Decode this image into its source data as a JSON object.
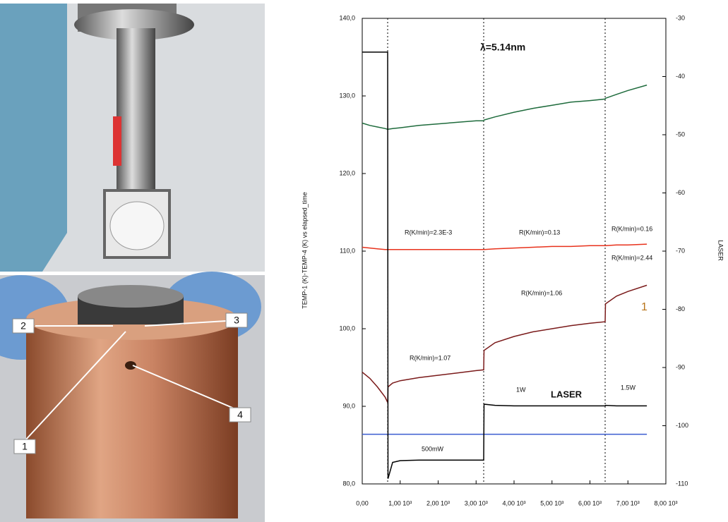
{
  "photo": {
    "labels": [
      "1",
      "2",
      "3",
      "4"
    ]
  },
  "chart_data": {
    "type": "line",
    "title": "λ=5.14nm",
    "y_label": "TEMP-1 (K)-TEMP-4 (K) vs elapsed_time",
    "y2_label": "LASER",
    "x": [
      0,
      200,
      400,
      600,
      670,
      680,
      800,
      1000,
      1500,
      2000,
      2500,
      3000,
      3200,
      3210,
      3500,
      4000,
      4500,
      5000,
      5500,
      6000,
      6400,
      6410,
      6700,
      7000,
      7500
    ],
    "series": [
      {
        "color": "#1e6b3c",
        "values": [
          126.5,
          126.2,
          126.0,
          125.8,
          125.7,
          125.7,
          125.8,
          125.9,
          126.2,
          126.4,
          126.6,
          126.8,
          126.8,
          126.9,
          127.3,
          127.9,
          128.4,
          128.8,
          129.2,
          129.4,
          129.6,
          129.7,
          130.2,
          130.7,
          131.4
        ]
      },
      {
        "color": "#e8321c",
        "values": [
          110.5,
          110.4,
          110.3,
          110.2,
          110.2,
          110.2,
          110.2,
          110.2,
          110.2,
          110.2,
          110.2,
          110.2,
          110.2,
          110.2,
          110.3,
          110.4,
          110.5,
          110.6,
          110.6,
          110.7,
          110.7,
          110.7,
          110.8,
          110.8,
          110.9
        ]
      },
      {
        "color": "#7a1a1a",
        "values": [
          94.4,
          93.6,
          92.5,
          91.2,
          90.5,
          92.5,
          93.0,
          93.3,
          93.7,
          94.0,
          94.3,
          94.6,
          94.7,
          97.2,
          98.2,
          99.0,
          99.6,
          100.0,
          100.4,
          100.7,
          100.9,
          103.2,
          104.2,
          104.8,
          105.6
        ]
      },
      {
        "color": "#3a5bd0",
        "values": [
          86.4,
          86.4,
          86.4,
          86.4,
          86.4,
          86.4,
          86.4,
          86.4,
          86.4,
          86.4,
          86.4,
          86.4,
          86.4,
          86.4,
          86.4,
          86.4,
          86.4,
          86.4,
          86.4,
          86.4,
          86.4,
          86.4,
          86.4,
          86.4,
          86.4
        ]
      },
      {
        "color": "#000000",
        "axis": "y2",
        "values": [
          -35.8,
          -35.8,
          -35.8,
          -35.8,
          -35.8,
          -109.1,
          -106.3,
          -106.0,
          -105.9,
          -105.9,
          -105.9,
          -105.9,
          -105.9,
          -96.3,
          -96.5,
          -96.6,
          -96.6,
          -96.6,
          -96.6,
          -96.6,
          -96.6,
          -96.5,
          -96.6,
          -96.6,
          -96.6
        ]
      }
    ],
    "vlines": [
      670,
      3200,
      6400
    ],
    "annotations": [
      "R(K/min)=2.3E-3",
      "R(K/min)=0.13",
      "R(K/min)=0.16",
      "R(K/min)=2.44",
      "R(K/min)=1.06",
      "R(K/min)=1.07",
      "1W",
      "LASER",
      "1.5W",
      "500mW",
      "1"
    ],
    "xlim": [
      0,
      8000
    ],
    "xticks": [
      {
        "value": 0,
        "label": "0,00"
      },
      {
        "value": 1000,
        "label": "1,00 10³"
      },
      {
        "value": 2000,
        "label": "2,00 10³"
      },
      {
        "value": 3000,
        "label": "3,00 10³"
      },
      {
        "value": 4000,
        "label": "4,00 10³"
      },
      {
        "value": 5000,
        "label": "5,00 10³"
      },
      {
        "value": 6000,
        "label": "6,00 10³"
      },
      {
        "value": 7000,
        "label": "7,00 10³"
      },
      {
        "value": 8000,
        "label": "8,00 10³"
      }
    ],
    "ylim": [
      80,
      140
    ],
    "yticks": [
      {
        "value": 80,
        "label": "80,0"
      },
      {
        "value": 90,
        "label": "90,0"
      },
      {
        "value": 100,
        "label": "100,0"
      },
      {
        "value": 110,
        "label": "110,0"
      },
      {
        "value": 120,
        "label": "120,0"
      },
      {
        "value": 130,
        "label": "130,0"
      },
      {
        "value": 140,
        "label": "140,0"
      }
    ],
    "y2lim": [
      -110,
      -30
    ],
    "y2ticks": [
      -110,
      -100,
      -90,
      -80,
      -70,
      -60,
      -50,
      -40,
      -30
    ]
  }
}
